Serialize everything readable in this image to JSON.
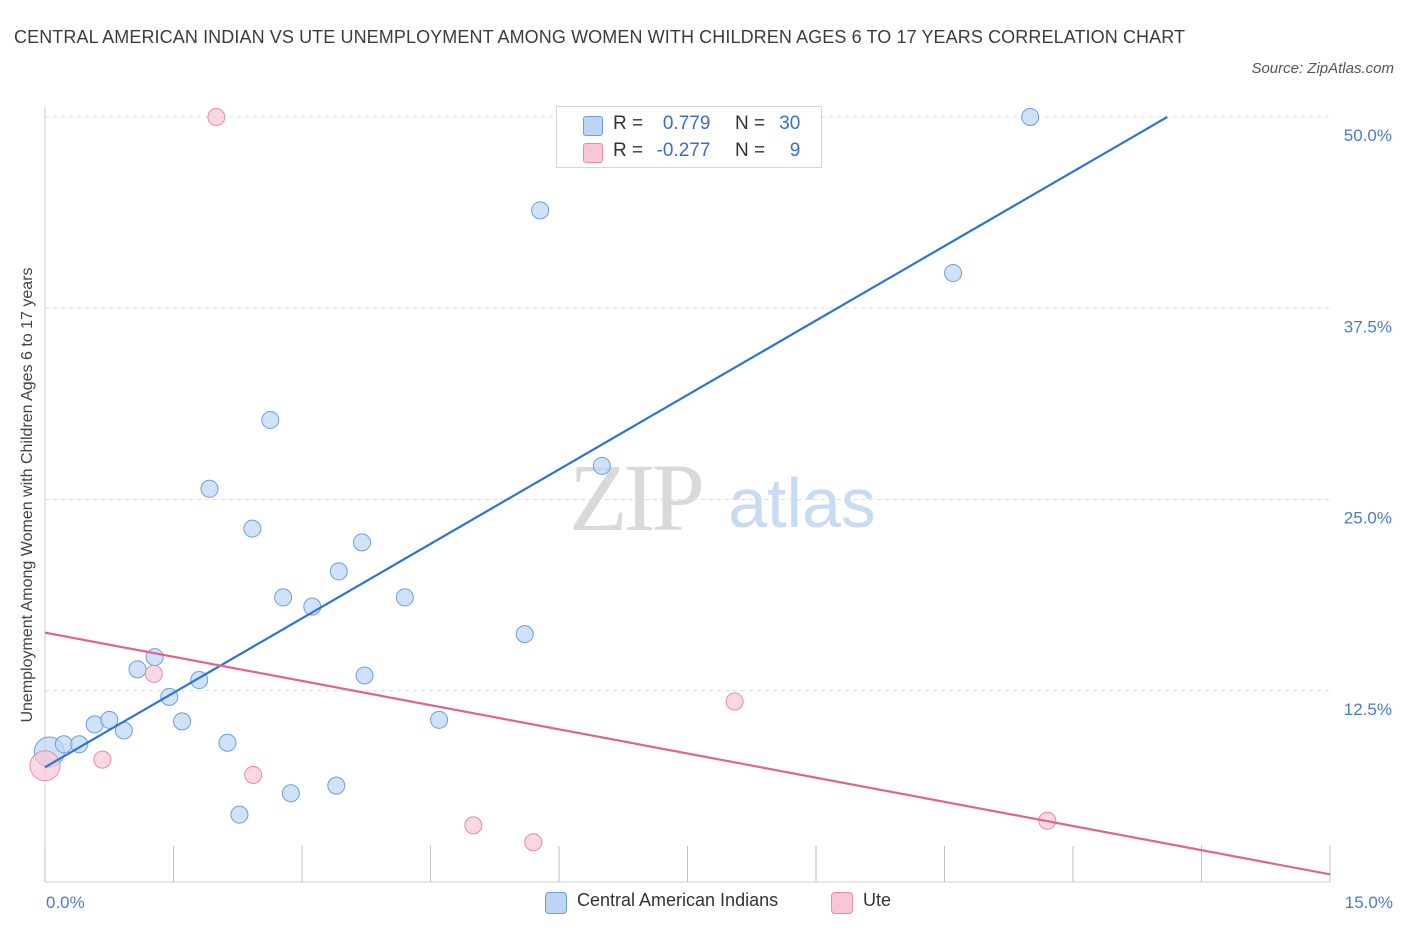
{
  "title": "CENTRAL AMERICAN INDIAN VS UTE UNEMPLOYMENT AMONG WOMEN WITH CHILDREN AGES 6 TO 17 YEARS CORRELATION CHART",
  "source": "Source: ZipAtlas.com",
  "watermark": {
    "zip": "ZIP",
    "atlas": "atlas"
  },
  "legend_stats": [
    {
      "r_label": "R =",
      "r_value": "0.779",
      "n_label": "N =",
      "n_value": "30",
      "color": "#a9c8f2"
    },
    {
      "r_label": "R =",
      "r_value": "-0.277",
      "n_label": "N =",
      "n_value": "9",
      "color": "#f5b8ca"
    }
  ],
  "chart_data": {
    "type": "scatter",
    "title": "CENTRAL AMERICAN INDIAN VS UTE UNEMPLOYMENT AMONG WOMEN WITH CHILDREN AGES 6 TO 17 YEARS CORRELATION CHART",
    "xlabel": "",
    "ylabel": "Unemployment Among Women with Children Ages 6 to 17 years",
    "xlim": [
      0,
      15
    ],
    "ylim": [
      0,
      50
    ],
    "x_tick_labels": [
      "0.0%",
      "15.0%"
    ],
    "y_tick_labels": [
      "12.5%",
      "25.0%",
      "37.5%",
      "50.0%"
    ],
    "y_ticks": [
      12.5,
      25.0,
      37.5,
      50.0
    ],
    "grid": "horizontal dashed",
    "legend_position": "bottom-center",
    "series": [
      {
        "name": "Central American Indians",
        "color": "#6b9ee0",
        "fill": "#bcd5f5",
        "trend": {
          "x0": 0.0,
          "y0": 7.5,
          "x1": 13.1,
          "y1": 50.0
        },
        "points": [
          {
            "x": 0.05,
            "y": 8.5,
            "big": true
          },
          {
            "x": 0.22,
            "y": 9.0
          },
          {
            "x": 0.4,
            "y": 9.0
          },
          {
            "x": 0.58,
            "y": 10.3
          },
          {
            "x": 0.75,
            "y": 10.6
          },
          {
            "x": 0.92,
            "y": 9.9
          },
          {
            "x": 1.08,
            "y": 13.9
          },
          {
            "x": 1.28,
            "y": 14.7
          },
          {
            "x": 1.45,
            "y": 12.1
          },
          {
            "x": 1.6,
            "y": 10.5
          },
          {
            "x": 1.8,
            "y": 13.2
          },
          {
            "x": 1.92,
            "y": 25.7
          },
          {
            "x": 2.13,
            "y": 9.1
          },
          {
            "x": 2.27,
            "y": 4.4
          },
          {
            "x": 2.42,
            "y": 23.1
          },
          {
            "x": 2.63,
            "y": 30.2
          },
          {
            "x": 2.78,
            "y": 18.6
          },
          {
            "x": 2.87,
            "y": 5.8
          },
          {
            "x": 3.12,
            "y": 18.0
          },
          {
            "x": 3.4,
            "y": 6.3
          },
          {
            "x": 3.43,
            "y": 20.3
          },
          {
            "x": 3.7,
            "y": 22.2
          },
          {
            "x": 3.73,
            "y": 13.5
          },
          {
            "x": 4.2,
            "y": 18.6
          },
          {
            "x": 4.6,
            "y": 10.6
          },
          {
            "x": 5.6,
            "y": 16.2
          },
          {
            "x": 5.78,
            "y": 43.9
          },
          {
            "x": 6.5,
            "y": 27.2
          },
          {
            "x": 10.6,
            "y": 39.8
          },
          {
            "x": 11.5,
            "y": 50.0
          }
        ]
      },
      {
        "name": "Ute",
        "color": "#e98aa7",
        "fill": "#f8c6d5",
        "trend": {
          "x0": 0.0,
          "y0": 16.3,
          "x1": 15.0,
          "y1": 0.5
        },
        "points": [
          {
            "x": 0.0,
            "y": 7.6,
            "big": true
          },
          {
            "x": 0.67,
            "y": 8.0
          },
          {
            "x": 1.27,
            "y": 13.6
          },
          {
            "x": 2.0,
            "y": 50.0
          },
          {
            "x": 2.43,
            "y": 7.0
          },
          {
            "x": 5.0,
            "y": 3.7
          },
          {
            "x": 5.7,
            "y": 2.6
          },
          {
            "x": 8.05,
            "y": 11.8
          },
          {
            "x": 11.7,
            "y": 4.0
          }
        ]
      }
    ]
  }
}
